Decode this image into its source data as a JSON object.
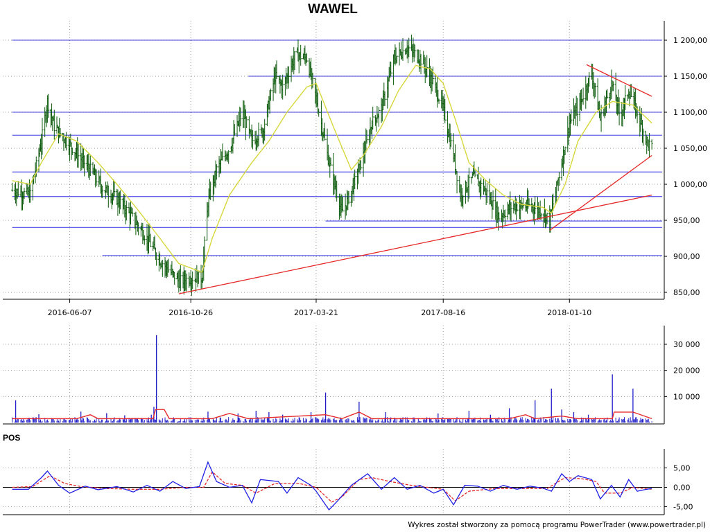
{
  "page": {
    "title": "WAWEL",
    "footer_credit": "Wykres został stworzony za pomocą programu PowerTrader (www.powertrader.pl)"
  },
  "colors": {
    "candle": "#0a5a0a",
    "moving_average": "#d7d73c",
    "support_lines": "#3c3ce6",
    "trend_lines": "#e62828",
    "volume_bars": "#1e1ec8",
    "volume_average": "#e62828",
    "pos_line": "#1e1ee6",
    "pos_signal": "#e62828",
    "grid": "#9a9a9a",
    "axis": "#000000"
  },
  "chart_data": [
    {
      "id": "price",
      "type": "candlestick",
      "title": "WAWEL",
      "x_tick_labels": [
        "2016-06-07",
        "2016-10-26",
        "2017-03-21",
        "2017-08-16",
        "2018-01-10"
      ],
      "y_tick_labels": [
        "1 200,00",
        "1 150,00",
        "1 100,00",
        "1 050,00",
        "1 000,00",
        "950,00",
        "900,00",
        "850,00"
      ],
      "y_ticks": [
        1200,
        1150,
        1100,
        1050,
        1000,
        950,
        900,
        850
      ],
      "ylim": [
        850,
        1200
      ],
      "grid": true,
      "close_path": [
        [
          "2016-04-01",
          992
        ],
        [
          "2016-04-22",
          985
        ],
        [
          "2016-05-05",
          1060
        ],
        [
          "2016-05-12",
          1115
        ],
        [
          "2016-05-20",
          1080
        ],
        [
          "2016-06-07",
          1055
        ],
        [
          "2016-06-20",
          1035
        ],
        [
          "2016-07-01",
          1020
        ],
        [
          "2016-07-15",
          995
        ],
        [
          "2016-08-01",
          980
        ],
        [
          "2016-08-18",
          955
        ],
        [
          "2016-09-05",
          925
        ],
        [
          "2016-09-20",
          895
        ],
        [
          "2016-10-05",
          875
        ],
        [
          "2016-10-12",
          865
        ],
        [
          "2016-10-26",
          870
        ],
        [
          "2016-11-08",
          870
        ],
        [
          "2016-11-15",
          975
        ],
        [
          "2016-11-25",
          1020
        ],
        [
          "2016-12-10",
          1050
        ],
        [
          "2016-12-25",
          1100
        ],
        [
          "2017-01-05",
          1060
        ],
        [
          "2017-01-18",
          1075
        ],
        [
          "2017-02-01",
          1150
        ],
        [
          "2017-02-10",
          1135
        ],
        [
          "2017-02-25",
          1180
        ],
        [
          "2017-03-10",
          1175
        ],
        [
          "2017-03-21",
          1120
        ],
        [
          "2017-04-05",
          1030
        ],
        [
          "2017-04-20",
          960
        ],
        [
          "2017-05-01",
          990
        ],
        [
          "2017-05-15",
          1040
        ],
        [
          "2017-05-25",
          1085
        ],
        [
          "2017-06-05",
          1105
        ],
        [
          "2017-06-20",
          1175
        ],
        [
          "2017-07-05",
          1190
        ],
        [
          "2017-07-20",
          1175
        ],
        [
          "2017-08-05",
          1140
        ],
        [
          "2017-08-16",
          1105
        ],
        [
          "2017-08-28",
          1040
        ],
        [
          "2017-09-05",
          985
        ],
        [
          "2017-09-20",
          1010
        ],
        [
          "2017-10-05",
          990
        ],
        [
          "2017-10-20",
          955
        ],
        [
          "2017-11-05",
          970
        ],
        [
          "2017-11-25",
          970
        ],
        [
          "2017-12-10",
          962
        ],
        [
          "2017-12-18",
          950
        ],
        [
          "2018-01-01",
          1030
        ],
        [
          "2018-01-10",
          1085
        ],
        [
          "2018-01-20",
          1105
        ],
        [
          "2018-02-05",
          1155
        ],
        [
          "2018-02-15",
          1090
        ],
        [
          "2018-02-28",
          1140
        ],
        [
          "2018-03-10",
          1095
        ],
        [
          "2018-03-20",
          1130
        ],
        [
          "2018-03-30",
          1100
        ],
        [
          "2018-04-10",
          1060
        ],
        [
          "2018-04-16",
          1050
        ]
      ],
      "moving_average_path": [
        [
          "2016-04-01",
          1005
        ],
        [
          "2016-04-22",
          1000
        ],
        [
          "2016-05-05",
          1030
        ],
        [
          "2016-05-25",
          1070
        ],
        [
          "2016-06-15",
          1060
        ],
        [
          "2016-07-10",
          1030
        ],
        [
          "2016-08-01",
          1000
        ],
        [
          "2016-08-25",
          965
        ],
        [
          "2016-09-20",
          925
        ],
        [
          "2016-10-12",
          890
        ],
        [
          "2016-11-08",
          878
        ],
        [
          "2016-11-20",
          925
        ],
        [
          "2016-12-10",
          985
        ],
        [
          "2017-01-05",
          1030
        ],
        [
          "2017-01-25",
          1060
        ],
        [
          "2017-02-15",
          1100
        ],
        [
          "2017-03-10",
          1135
        ],
        [
          "2017-03-21",
          1140
        ],
        [
          "2017-04-10",
          1080
        ],
        [
          "2017-05-01",
          1020
        ],
        [
          "2017-05-15",
          1040
        ],
        [
          "2017-06-05",
          1080
        ],
        [
          "2017-06-25",
          1130
        ],
        [
          "2017-07-15",
          1165
        ],
        [
          "2017-08-01",
          1160
        ],
        [
          "2017-08-16",
          1140
        ],
        [
          "2017-08-30",
          1090
        ],
        [
          "2017-09-15",
          1030
        ],
        [
          "2017-10-05",
          1005
        ],
        [
          "2017-10-25",
          985
        ],
        [
          "2017-11-15",
          972
        ],
        [
          "2017-12-10",
          968
        ],
        [
          "2017-12-20",
          960
        ],
        [
          "2018-01-05",
          1000
        ],
        [
          "2018-01-20",
          1060
        ],
        [
          "2018-02-10",
          1100
        ],
        [
          "2018-03-01",
          1115
        ],
        [
          "2018-03-25",
          1110
        ],
        [
          "2018-04-16",
          1085
        ]
      ],
      "horizontal_levels": [
        {
          "value": 1200,
          "from": "2016-04-01"
        },
        {
          "value": 1150,
          "from": "2017-01-01"
        },
        {
          "value": 1100,
          "from": "2016-04-01"
        },
        {
          "value": 1068,
          "from": "2016-04-01"
        },
        {
          "value": 1017,
          "from": "2016-04-01"
        },
        {
          "value": 983,
          "from": "2016-04-01"
        },
        {
          "value": 949,
          "from": "2017-04-01"
        },
        {
          "value": 940,
          "from": "2016-04-01"
        },
        {
          "value": 901,
          "from": "2016-07-15"
        }
      ],
      "trend_lines": [
        {
          "from": [
            "2016-10-12",
            848
          ],
          "to": [
            "2018-04-16",
            985
          ]
        },
        {
          "from": [
            "2017-12-18",
            936
          ],
          "to": [
            "2018-04-16",
            1040
          ]
        },
        {
          "from": [
            "2018-01-30",
            1166
          ],
          "to": [
            "2018-04-16",
            1122
          ]
        }
      ]
    },
    {
      "id": "volume",
      "type": "bar",
      "y_tick_labels": [
        "30 000",
        "20 000",
        "10 000"
      ],
      "y_ticks": [
        30000,
        20000,
        10000
      ],
      "ylim": [
        0,
        34000
      ],
      "spikes": [
        [
          "2016-04-05",
          8500
        ],
        [
          "2016-05-02",
          3200
        ],
        [
          "2016-06-20",
          4200
        ],
        [
          "2016-07-20",
          3600
        ],
        [
          "2016-08-10",
          2800
        ],
        [
          "2016-09-10",
          3000
        ],
        [
          "2016-09-13",
          6000
        ],
        [
          "2016-09-16",
          33500
        ],
        [
          "2016-11-15",
          4200
        ],
        [
          "2016-12-20",
          3500
        ],
        [
          "2017-01-10",
          4500
        ],
        [
          "2017-01-25",
          4000
        ],
        [
          "2017-02-10",
          3000
        ],
        [
          "2017-03-15",
          4000
        ],
        [
          "2017-04-01",
          11500
        ],
        [
          "2017-05-10",
          8000
        ],
        [
          "2017-06-10",
          4000
        ],
        [
          "2017-08-10",
          3500
        ],
        [
          "2017-09-15",
          4500
        ],
        [
          "2017-10-10",
          3000
        ],
        [
          "2017-11-01",
          5500
        ],
        [
          "2017-12-01",
          8500
        ],
        [
          "2017-12-20",
          13000
        ],
        [
          "2018-01-01",
          5000
        ],
        [
          "2018-01-15",
          4000
        ],
        [
          "2018-02-01",
          3000
        ],
        [
          "2018-03-01",
          18500
        ],
        [
          "2018-03-25",
          13000
        ]
      ],
      "average_path": [
        [
          "2016-04-01",
          1500
        ],
        [
          "2016-06-15",
          1500
        ],
        [
          "2016-07-01",
          3000
        ],
        [
          "2016-07-10",
          1500
        ],
        [
          "2016-09-12",
          1500
        ],
        [
          "2016-09-15",
          5000
        ],
        [
          "2016-09-25",
          5000
        ],
        [
          "2016-10-01",
          1500
        ],
        [
          "2016-11-20",
          1500
        ],
        [
          "2016-12-10",
          3500
        ],
        [
          "2017-01-01",
          1500
        ],
        [
          "2017-04-01",
          3000
        ],
        [
          "2017-04-20",
          1500
        ],
        [
          "2017-05-10",
          4000
        ],
        [
          "2017-05-25",
          1500
        ],
        [
          "2017-11-01",
          1500
        ],
        [
          "2017-11-20",
          3000
        ],
        [
          "2017-12-01",
          1500
        ],
        [
          "2018-01-01",
          2500
        ],
        [
          "2018-01-20",
          1500
        ],
        [
          "2018-03-01",
          1500
        ],
        [
          "2018-03-03",
          4000
        ],
        [
          "2018-03-25",
          4000
        ],
        [
          "2018-04-16",
          1500
        ]
      ]
    },
    {
      "id": "pos",
      "type": "line",
      "title": "POS",
      "y_tick_labels": [
        "5,00",
        "0,00",
        "-5,00"
      ],
      "y_ticks": [
        5,
        0,
        -5
      ],
      "ylim": [
        -7,
        7
      ],
      "series": [
        {
          "role": "oscillator",
          "path": [
            [
              "2016-04-01",
              -0.5
            ],
            [
              "2016-04-20",
              -0.5
            ],
            [
              "2016-05-05",
              2.5
            ],
            [
              "2016-05-12",
              4.2
            ],
            [
              "2016-05-25",
              0.5
            ],
            [
              "2016-06-07",
              -1.5
            ],
            [
              "2016-06-25",
              0.3
            ],
            [
              "2016-07-10",
              -0.6
            ],
            [
              "2016-08-01",
              0.2
            ],
            [
              "2016-08-20",
              -1.2
            ],
            [
              "2016-09-05",
              0.5
            ],
            [
              "2016-09-20",
              -1.0
            ],
            [
              "2016-10-05",
              1.5
            ],
            [
              "2016-10-20",
              -0.3
            ],
            [
              "2016-11-05",
              0.2
            ],
            [
              "2016-11-15",
              6.5
            ],
            [
              "2016-11-25",
              1.5
            ],
            [
              "2016-12-10",
              0.0
            ],
            [
              "2016-12-25",
              0.5
            ],
            [
              "2017-01-05",
              -4.0
            ],
            [
              "2017-01-15",
              2.0
            ],
            [
              "2017-02-05",
              1.5
            ],
            [
              "2017-02-15",
              -1.5
            ],
            [
              "2017-02-28",
              2.5
            ],
            [
              "2017-03-15",
              0.5
            ],
            [
              "2017-03-21",
              -1.0
            ],
            [
              "2017-04-05",
              -5.8
            ],
            [
              "2017-04-15",
              -3.5
            ],
            [
              "2017-05-01",
              0.5
            ],
            [
              "2017-05-20",
              3.5
            ],
            [
              "2017-06-05",
              -0.5
            ],
            [
              "2017-06-20",
              2.5
            ],
            [
              "2017-07-05",
              -0.5
            ],
            [
              "2017-07-20",
              0.5
            ],
            [
              "2017-08-05",
              -1.5
            ],
            [
              "2017-08-16",
              -0.5
            ],
            [
              "2017-08-28",
              -4.5
            ],
            [
              "2017-09-10",
              0.5
            ],
            [
              "2017-09-25",
              0.3
            ],
            [
              "2017-10-10",
              -1.0
            ],
            [
              "2017-10-25",
              0.5
            ],
            [
              "2017-11-10",
              -0.5
            ],
            [
              "2017-11-25",
              0.3
            ],
            [
              "2017-12-10",
              -0.2
            ],
            [
              "2017-12-20",
              -1.0
            ],
            [
              "2018-01-01",
              3.5
            ],
            [
              "2018-01-10",
              1.5
            ],
            [
              "2018-01-20",
              3.0
            ],
            [
              "2018-02-05",
              2.0
            ],
            [
              "2018-02-15",
              -3.0
            ],
            [
              "2018-02-28",
              0.5
            ],
            [
              "2018-03-10",
              -2.5
            ],
            [
              "2018-03-20",
              2.0
            ],
            [
              "2018-03-30",
              -1.0
            ],
            [
              "2018-04-10",
              -0.5
            ],
            [
              "2018-04-16",
              -0.3
            ]
          ]
        },
        {
          "role": "signal",
          "path": [
            [
              "2016-04-01",
              0.0
            ],
            [
              "2016-04-25",
              0.2
            ],
            [
              "2016-05-15",
              3.0
            ],
            [
              "2016-06-01",
              1.0
            ],
            [
              "2016-06-20",
              0.2
            ],
            [
              "2016-07-20",
              -0.3
            ],
            [
              "2016-08-20",
              -0.5
            ],
            [
              "2016-09-20",
              -0.5
            ],
            [
              "2016-10-20",
              0.0
            ],
            [
              "2016-11-10",
              0.0
            ],
            [
              "2016-11-20",
              4.0
            ],
            [
              "2016-12-05",
              1.0
            ],
            [
              "2016-12-25",
              0.5
            ],
            [
              "2017-01-10",
              -1.5
            ],
            [
              "2017-02-01",
              1.0
            ],
            [
              "2017-03-01",
              1.0
            ],
            [
              "2017-03-21",
              0.0
            ],
            [
              "2017-04-08",
              -3.8
            ],
            [
              "2017-04-20",
              -2.5
            ],
            [
              "2017-05-10",
              2.0
            ],
            [
              "2017-05-25",
              2.5
            ],
            [
              "2017-06-15",
              1.5
            ],
            [
              "2017-07-10",
              0.5
            ],
            [
              "2017-08-16",
              -0.5
            ],
            [
              "2017-08-30",
              -3.5
            ],
            [
              "2017-09-15",
              -1.0
            ],
            [
              "2017-10-15",
              -0.3
            ],
            [
              "2017-11-15",
              -0.3
            ],
            [
              "2017-12-15",
              -0.3
            ],
            [
              "2018-01-05",
              2.5
            ],
            [
              "2018-01-25",
              2.2
            ],
            [
              "2018-02-10",
              1.5
            ],
            [
              "2018-02-20",
              -1.5
            ],
            [
              "2018-03-10",
              -1.5
            ],
            [
              "2018-03-25",
              0.0
            ],
            [
              "2018-04-16",
              -0.5
            ]
          ]
        }
      ]
    }
  ]
}
